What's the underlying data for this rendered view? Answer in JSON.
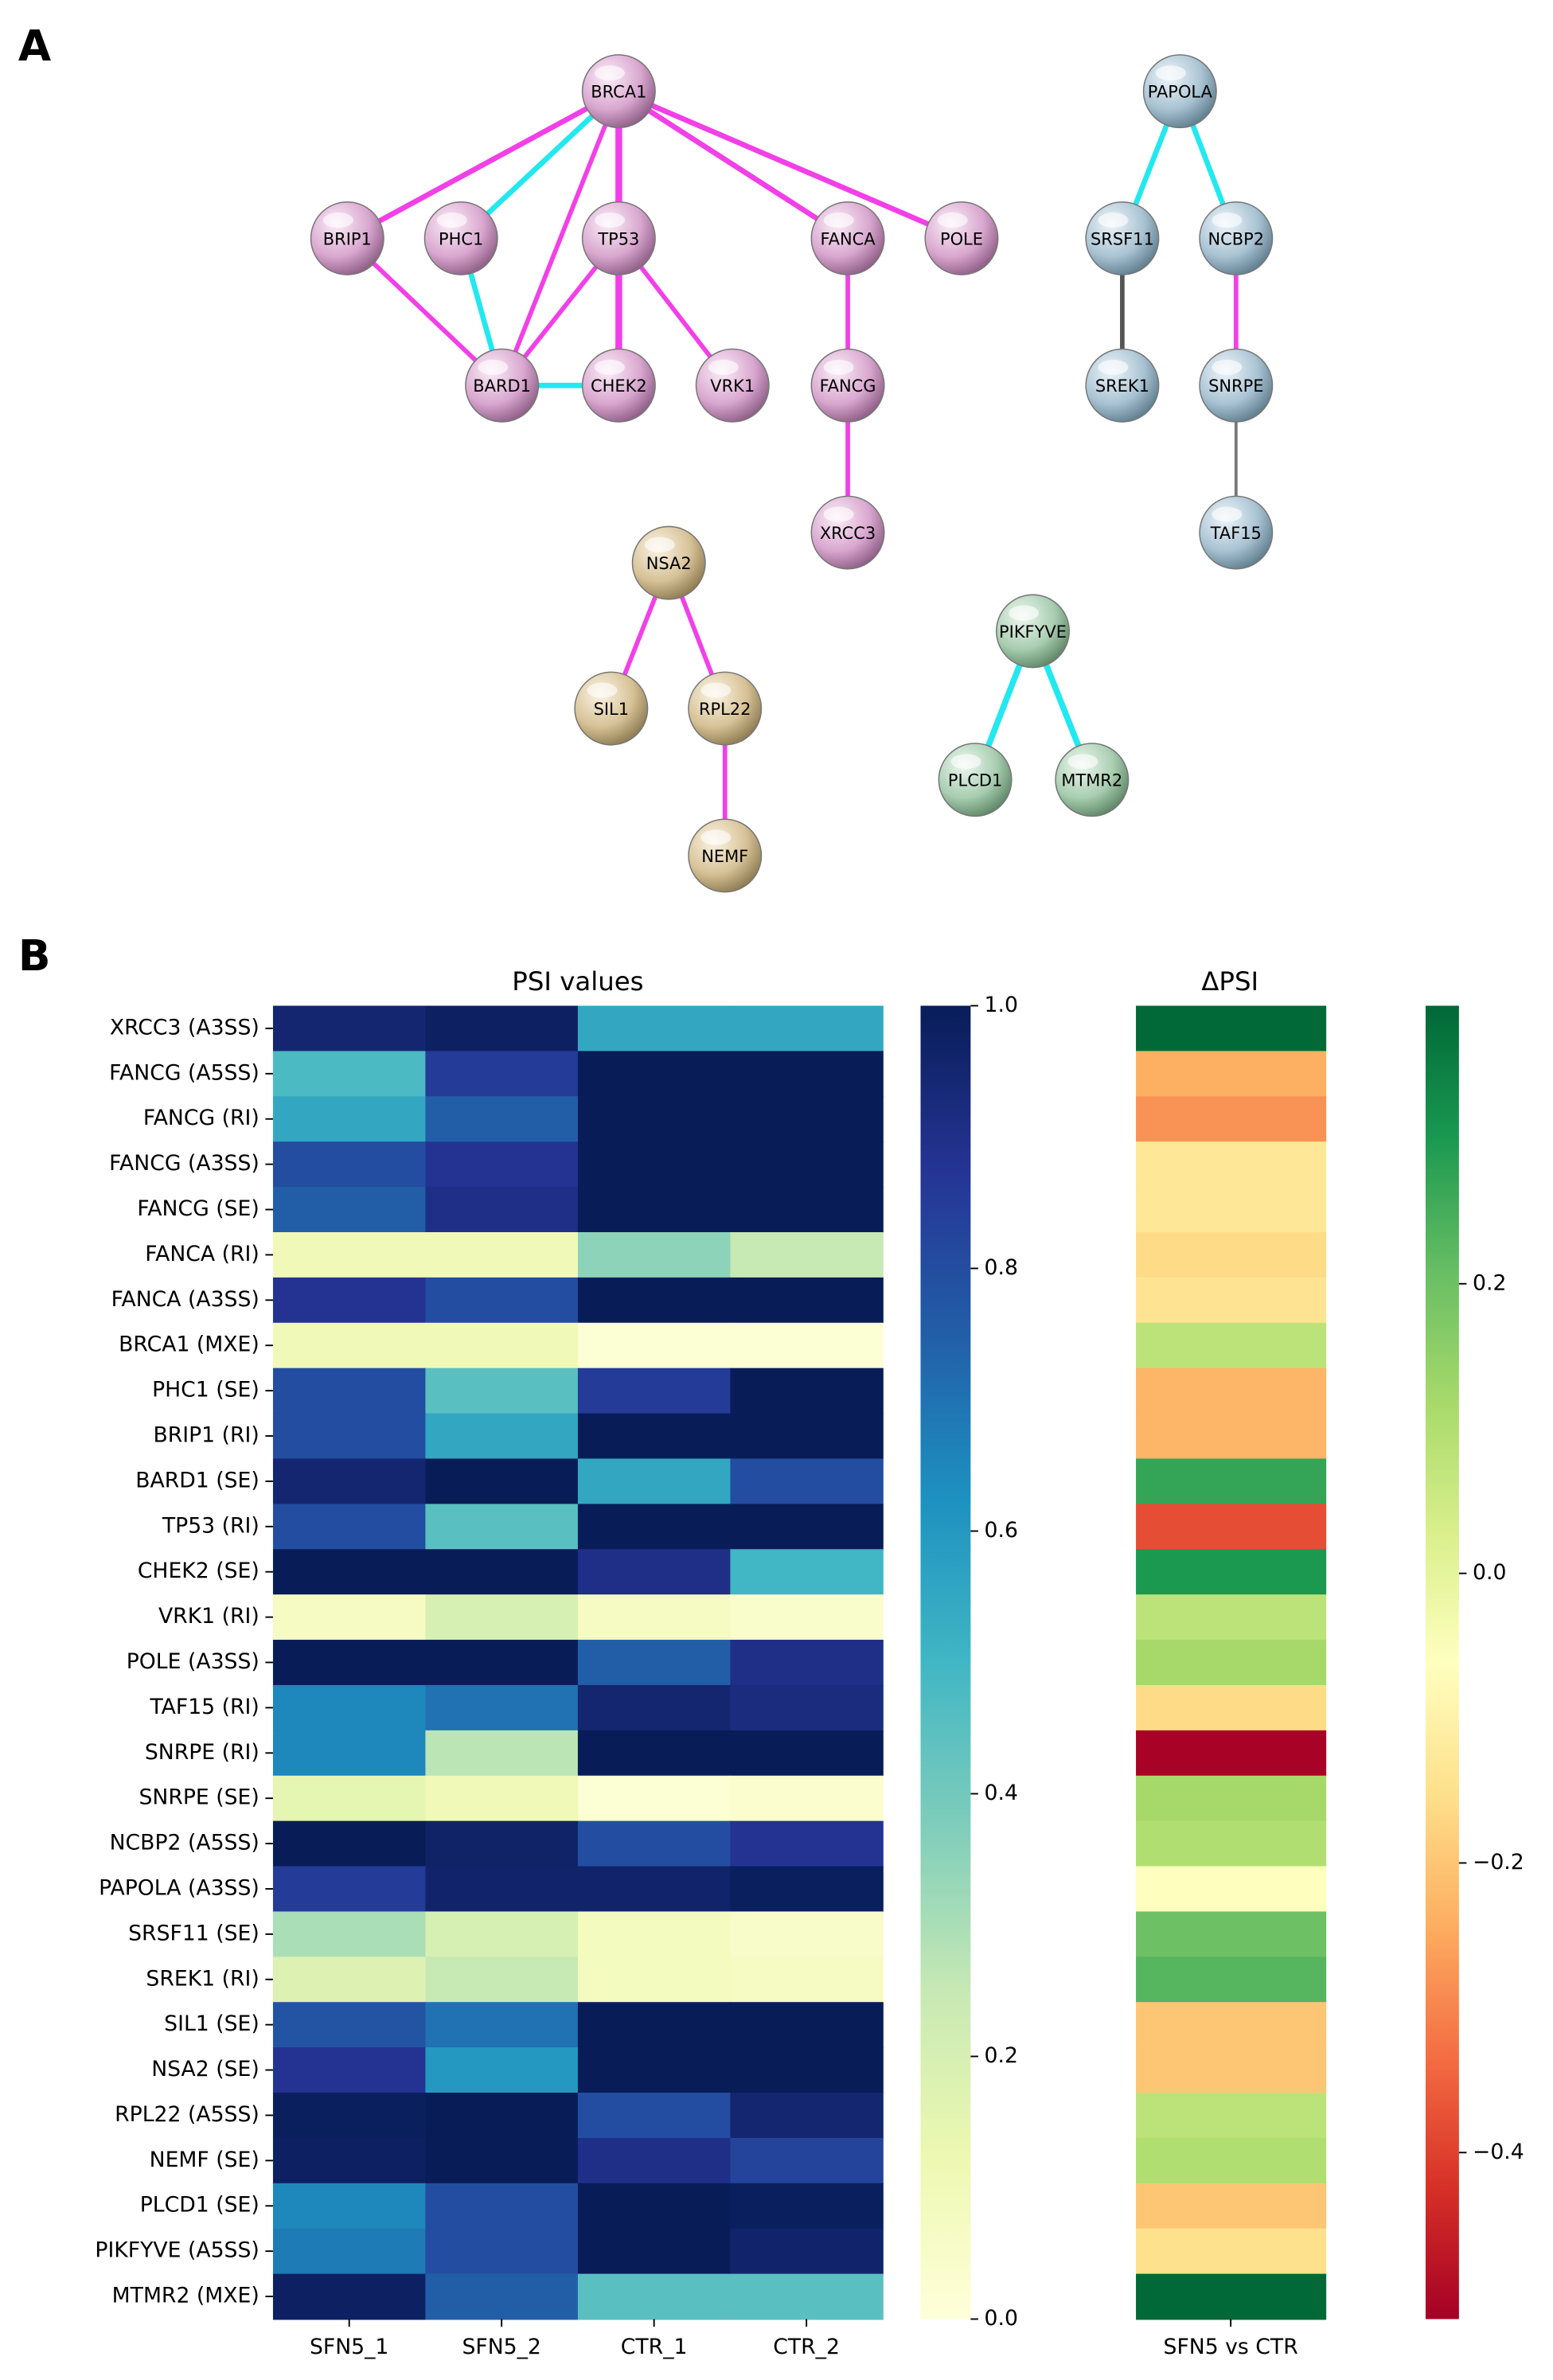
{
  "panel_labels": [
    "A",
    "B"
  ],
  "network": {
    "nodes": [
      "BRCA1",
      "PAPOLA",
      "BRIP1",
      "PHC1",
      "TP53",
      "FANCA",
      "POLE",
      "SRSF11",
      "NCBP2",
      "BARD1",
      "CHEK2",
      "VRK1",
      "FANCG",
      "SREK1",
      "SNRPE",
      "XRCC3",
      "TAF15",
      "NSA2",
      "SIL1",
      "RPL22",
      "PIKFYVE",
      "PLCD1",
      "MTMR2",
      "NEMF"
    ]
  },
  "chart_data": [
    {
      "type": "heatmap",
      "title": "PSI values",
      "colormap": "YlGnBu",
      "rows": [
        "XRCC3 (A3SS)",
        "FANCG (A5SS)",
        "FANCG (RI)",
        "FANCG (A3SS)",
        "FANCG (SE)",
        "FANCA (RI)",
        "FANCA (A3SS)",
        "BRCA1 (MXE)",
        "PHC1 (SE)",
        "BRIP1 (RI)",
        "BARD1 (SE)",
        "TP53 (RI)",
        "CHEK2 (SE)",
        "VRK1 (RI)",
        "POLE (A3SS)",
        "TAF15 (RI)",
        "SNRPE (RI)",
        "SNRPE (SE)",
        "NCBP2 (A5SS)",
        "PAPOLA (A3SS)",
        "SRSF11 (SE)",
        "SREK1 (RI)",
        "SIL1 (SE)",
        "NSA2 (SE)",
        "RPL22 (A5SS)",
        "NEMF (SE)",
        "PLCD1 (SE)",
        "PIKFYVE (A5SS)",
        "MTMR2 (MXE)"
      ],
      "columns": [
        "SFN5_1",
        "SFN5_2",
        "CTR_1",
        "CTR_2"
      ],
      "values": [
        [
          0.95,
          0.98,
          0.55,
          0.55
        ],
        [
          0.48,
          0.85,
          1,
          1
        ],
        [
          0.55,
          0.75,
          1,
          1
        ],
        [
          0.8,
          0.88,
          1,
          1
        ],
        [
          0.75,
          0.9,
          1,
          1
        ],
        [
          0.1,
          0.1,
          0.35,
          0.25
        ],
        [
          0.88,
          0.8,
          1,
          1
        ],
        [
          0.1,
          0.1,
          0.02,
          0.02
        ],
        [
          0.8,
          0.45,
          0.85,
          1
        ],
        [
          0.8,
          0.55,
          1,
          1
        ],
        [
          0.95,
          1,
          0.55,
          0.8
        ],
        [
          0.8,
          0.45,
          1,
          1
        ],
        [
          1,
          1,
          0.9,
          0.5
        ],
        [
          0.07,
          0.2,
          0.07,
          0.04
        ],
        [
          1,
          1,
          0.75,
          0.9
        ],
        [
          0.65,
          0.7,
          0.95,
          0.92
        ],
        [
          0.65,
          0.27,
          1,
          1
        ],
        [
          0.15,
          0.1,
          0.02,
          0.03
        ],
        [
          1,
          0.97,
          0.8,
          0.88
        ],
        [
          0.85,
          0.96,
          0.96,
          0.99
        ],
        [
          0.3,
          0.2,
          0.08,
          0.05
        ],
        [
          0.18,
          0.25,
          0.08,
          0.07
        ],
        [
          0.78,
          0.7,
          1,
          1
        ],
        [
          0.88,
          0.6,
          1,
          1
        ],
        [
          0.99,
          1,
          0.8,
          0.95
        ],
        [
          0.98,
          1,
          0.9,
          0.83
        ],
        [
          0.65,
          0.8,
          1,
          0.99
        ],
        [
          0.68,
          0.8,
          1,
          0.96
        ],
        [
          0.98,
          0.75,
          0.45,
          0.45
        ]
      ],
      "clim": [
        0,
        1
      ],
      "cticks": [
        {
          "value": 0,
          "label": "0.0"
        },
        0.2,
        0.4,
        0.6,
        0.8,
        {
          "value": 1,
          "label": "1.0"
        }
      ]
    },
    {
      "type": "heatmap",
      "title": "ΔPSI",
      "colormap": "RdYlGn",
      "columns": [
        "SFN5 vs CTR"
      ],
      "values": [
        [
          0.39
        ],
        [
          -0.24
        ],
        [
          -0.28
        ],
        [
          -0.13
        ],
        [
          -0.13
        ],
        [
          -0.16
        ],
        [
          -0.14
        ],
        [
          0.08
        ],
        [
          -0.23
        ],
        [
          -0.23
        ],
        [
          0.27
        ],
        [
          -0.38
        ],
        [
          0.3
        ],
        [
          0.08
        ],
        [
          0.12
        ],
        [
          -0.16
        ],
        [
          -0.51
        ],
        [
          0.12
        ],
        [
          0.1
        ],
        [
          -0.06
        ],
        [
          0.2
        ],
        [
          0.23
        ],
        [
          -0.2
        ],
        [
          -0.2
        ],
        [
          0.08
        ],
        [
          0.1
        ],
        [
          -0.2
        ],
        [
          -0.15
        ],
        [
          0.39
        ]
      ],
      "clim": [
        -0.515,
        0.392
      ],
      "cticks": [
        {
          "value": -0.4,
          "label": "−0.4"
        },
        {
          "value": -0.2,
          "label": "−0.2"
        },
        {
          "value": 0,
          "label": "0.0"
        },
        0.2
      ]
    }
  ]
}
